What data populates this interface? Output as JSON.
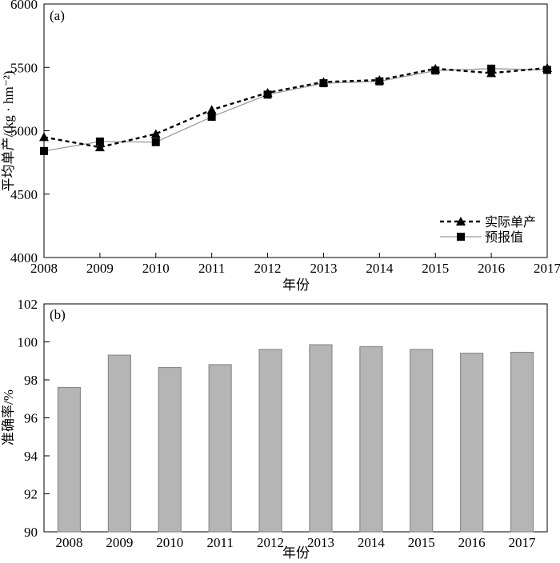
{
  "figure": {
    "background": "#ffffff",
    "frame_color": "#000000"
  },
  "chart_data": [
    {
      "type": "line",
      "panel": "(a)",
      "x": [
        2008,
        2009,
        2010,
        2011,
        2012,
        2013,
        2014,
        2015,
        2016,
        2017
      ],
      "series": [
        {
          "name": "实际单产",
          "marker": "triangle",
          "line_style": "dashed",
          "color": "#000000",
          "values": [
            4950,
            4870,
            4975,
            5165,
            5300,
            5385,
            5400,
            5490,
            5455,
            5495
          ]
        },
        {
          "name": "预报值",
          "marker": "square",
          "line_style": "solid",
          "color": "#9a9a9a",
          "marker_color": "#000000",
          "values": [
            4840,
            4915,
            4910,
            5110,
            5285,
            5375,
            5390,
            5475,
            5490,
            5480
          ]
        }
      ],
      "xlabel": "年份",
      "ylabel": "平均单产/(kg · hm⁻²)",
      "ylim": [
        4000,
        6000
      ],
      "yticks": [
        4000,
        4500,
        5000,
        5500,
        6000
      ],
      "grid": false,
      "legend_position": "lower right"
    },
    {
      "type": "bar",
      "panel": "(b)",
      "categories": [
        2008,
        2009,
        2010,
        2011,
        2012,
        2013,
        2014,
        2015,
        2016,
        2017
      ],
      "values": [
        97.6,
        99.3,
        98.65,
        98.8,
        99.6,
        99.85,
        99.75,
        99.6,
        99.4,
        99.45
      ],
      "xlabel": "年份",
      "ylabel": "准确率/%",
      "ylim": [
        90,
        102
      ],
      "yticks": [
        90,
        92,
        94,
        96,
        98,
        100,
        102
      ],
      "grid": false,
      "bar_fill": "#b5b5b5",
      "bar_stroke": "#8a8a8a"
    }
  ]
}
